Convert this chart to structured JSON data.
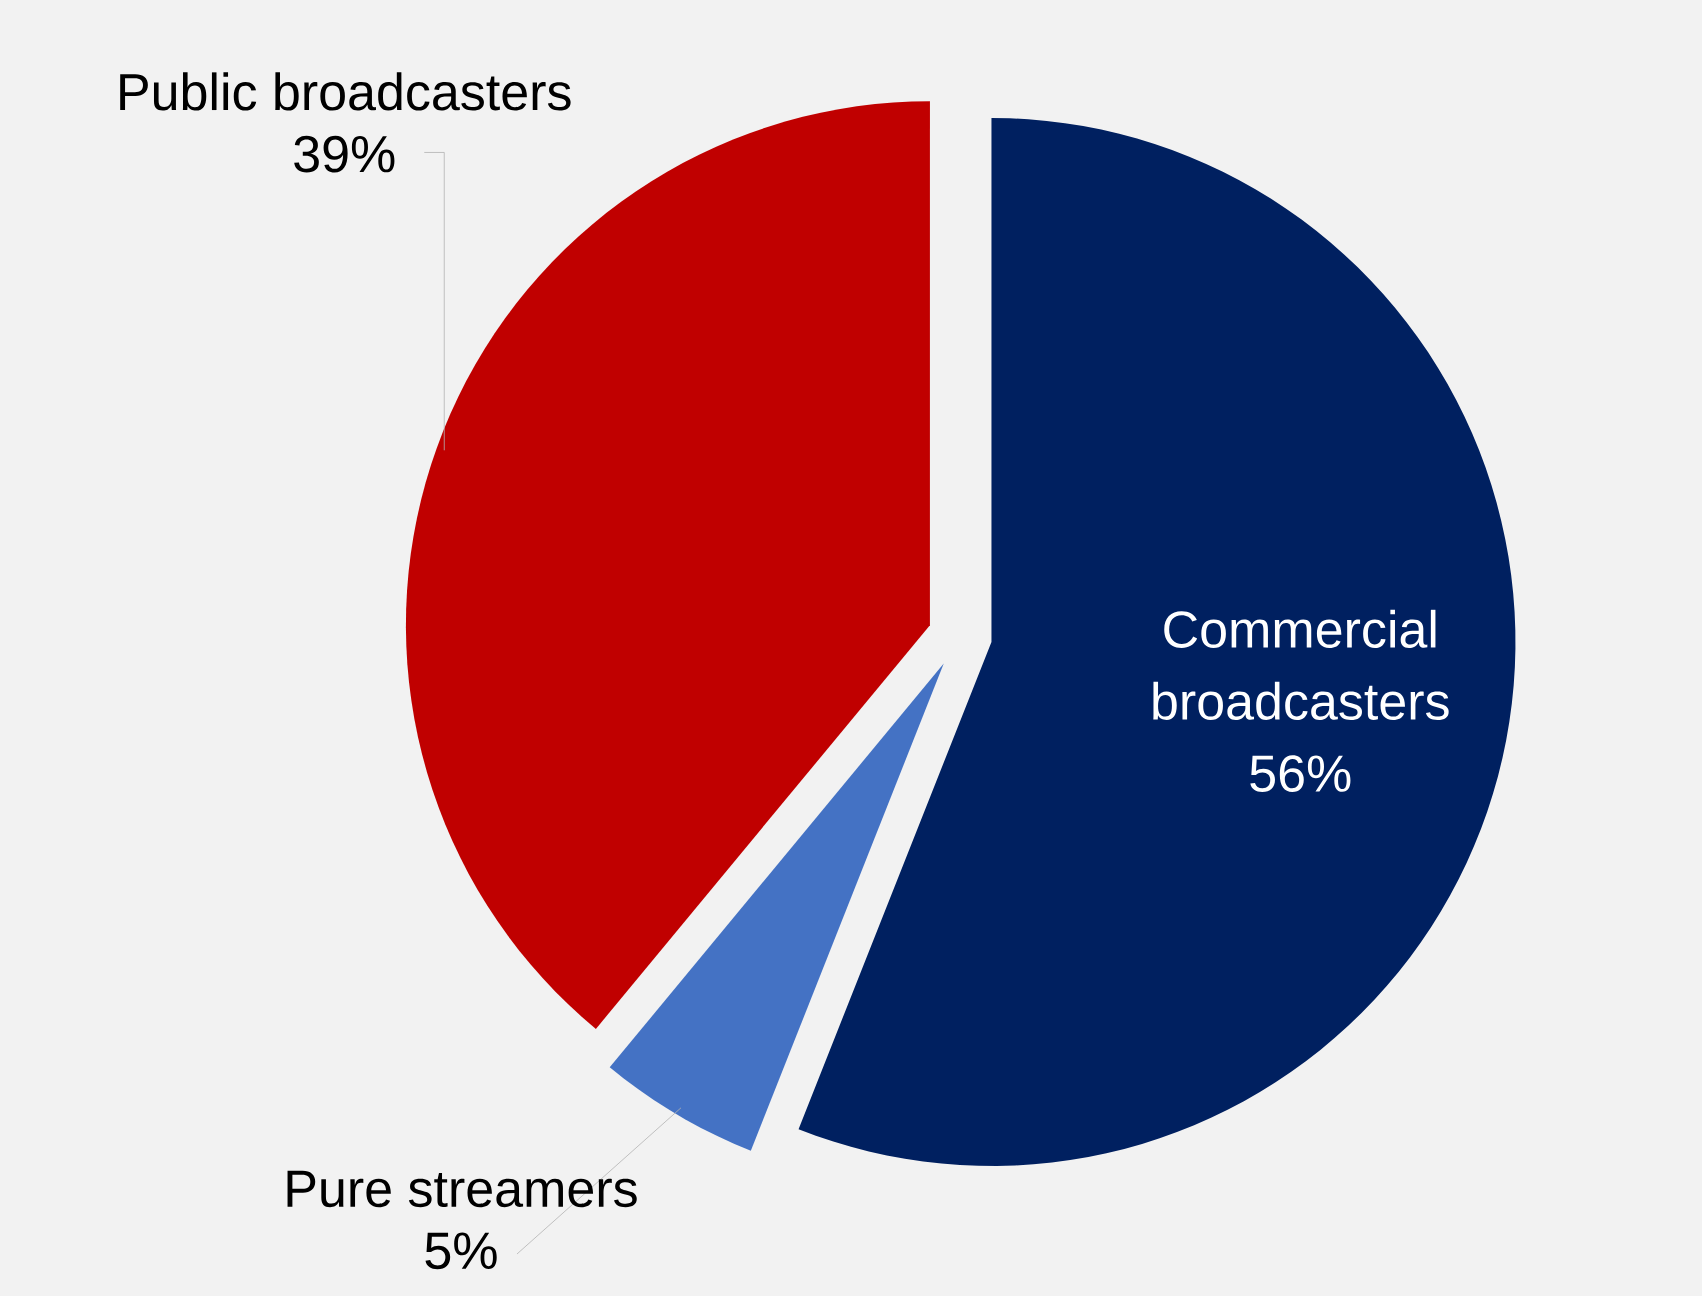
{
  "chart_data": {
    "type": "pie",
    "categories": [
      "Commercial broadcasters",
      "Pure streamers",
      "Public broadcasters"
    ],
    "values": [
      56,
      5,
      39
    ],
    "value_labels": [
      "56%",
      "5%",
      "39%"
    ],
    "colors": [
      "#002060",
      "#4472c4",
      "#c00000"
    ]
  }
}
